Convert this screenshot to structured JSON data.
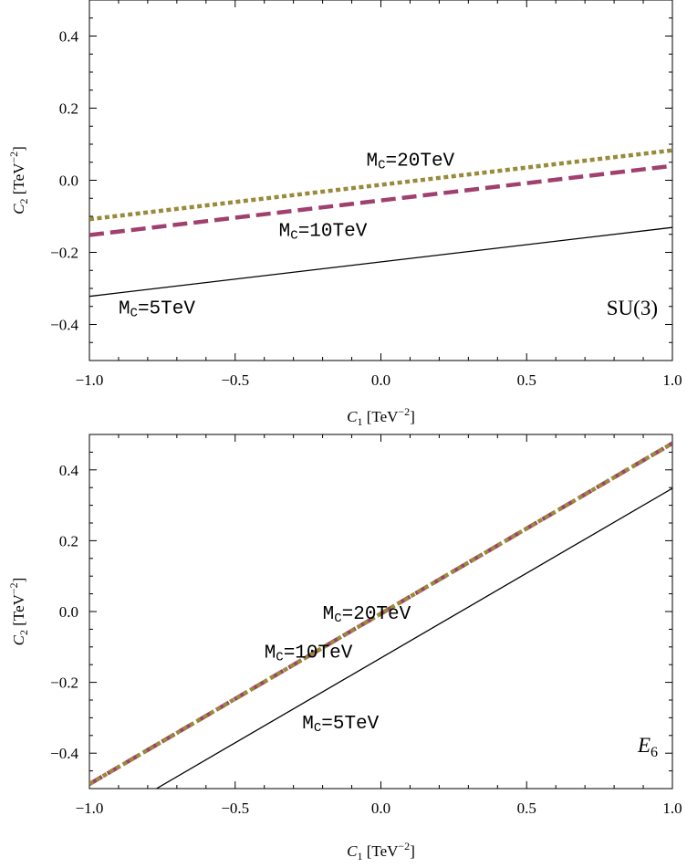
{
  "chart_data": [
    {
      "type": "line",
      "group_label": "SU(3)",
      "xlabel": "C1 [TeV^-2]",
      "ylabel": "C2 [TeV^-2]",
      "xlim": [
        -1.0,
        1.0
      ],
      "ylim": [
        -0.5,
        0.5
      ],
      "xticks": [
        -1.0,
        -0.5,
        0.0,
        0.5,
        1.0
      ],
      "xtick_labels": [
        "−1.0",
        "−0.5",
        "0.0",
        "0.5",
        "1.0"
      ],
      "yticks": [
        -0.4,
        -0.2,
        0.0,
        0.2,
        0.4
      ],
      "ytick_labels": [
        "−0.4",
        "−0.2",
        "0.0",
        "0.2",
        "0.4"
      ],
      "series": [
        {
          "name": "M_C=5TeV",
          "style": "solid",
          "color": "#000000",
          "x": [
            -1.0,
            1.0
          ],
          "y": [
            -0.322,
            -0.131
          ]
        },
        {
          "name": "M_C=10TeV",
          "style": "dashed",
          "color": "#a0406e",
          "x": [
            -1.0,
            1.0
          ],
          "y": [
            -0.152,
            0.04
          ]
        },
        {
          "name": "M_C=20TeV",
          "style": "dotted",
          "color": "#9a8a3c",
          "x": [
            -1.0,
            1.0
          ],
          "y": [
            -0.108,
            0.083
          ]
        }
      ],
      "annotations": [
        {
          "text": "M_C=20TeV",
          "x": -0.05,
          "y": 0.04
        },
        {
          "text": "M_C=10TeV",
          "x": -0.35,
          "y": -0.155
        },
        {
          "text": "M_C=5TeV",
          "x": -0.9,
          "y": -0.37
        }
      ]
    },
    {
      "type": "line",
      "group_label": "E6",
      "xlabel": "C1 [TeV^-2]",
      "ylabel": "C2 [TeV^-2]",
      "xlim": [
        -1.0,
        1.0
      ],
      "ylim": [
        -0.5,
        0.5
      ],
      "xticks": [
        -1.0,
        -0.5,
        0.0,
        0.5,
        1.0
      ],
      "xtick_labels": [
        "−1.0",
        "−0.5",
        "0.0",
        "0.5",
        "1.0"
      ],
      "yticks": [
        -0.4,
        -0.2,
        0.0,
        0.2,
        0.4
      ],
      "ytick_labels": [
        "−0.4",
        "−0.2",
        "0.0",
        "0.2",
        "0.4"
      ],
      "series": [
        {
          "name": "M_C=5TeV",
          "style": "solid",
          "color": "#000000",
          "x": [
            -0.77,
            1.0
          ],
          "y": [
            -0.5,
            0.348
          ]
        },
        {
          "name": "M_C=10TeV",
          "style": "dashed",
          "color": "#a0406e",
          "x": [
            -1.0,
            1.0
          ],
          "y": [
            -0.487,
            0.475
          ]
        },
        {
          "name": "M_C=20TeV",
          "style": "dotted",
          "color": "#9a8a3c",
          "x": [
            -1.0,
            1.0
          ],
          "y": [
            -0.487,
            0.475
          ]
        }
      ],
      "annotations": [
        {
          "text": "M_C=20TeV",
          "x": -0.2,
          "y": -0.02
        },
        {
          "text": "M_C=10TeV",
          "x": -0.4,
          "y": -0.13
        },
        {
          "text": "M_C=5TeV",
          "x": -0.27,
          "y": -0.33
        }
      ]
    }
  ]
}
